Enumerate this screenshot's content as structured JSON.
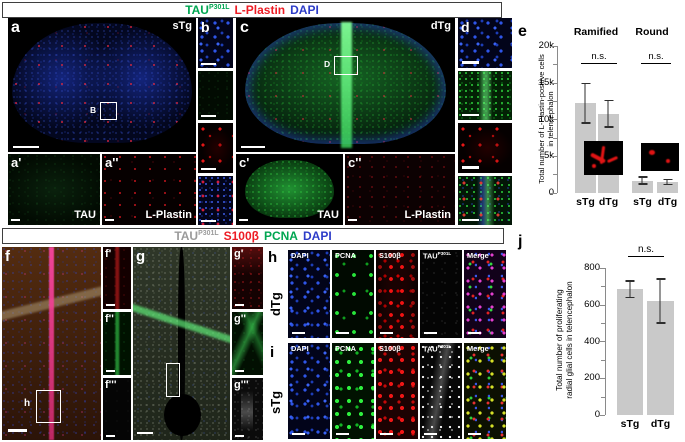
{
  "colors": {
    "tau_green": "#00a651",
    "lplastin_red": "#ed1c24",
    "dapi_blue": "#2d3cc8",
    "s100b_red": "#ed1c24",
    "pcna_green": "#00a651",
    "tau_gray": "#9b9b9b",
    "bar_fill": "#c9c9c9"
  },
  "header_top": {
    "tau": "TAU",
    "tau_sup": "P301L",
    "stain_2": "L-Plastin",
    "stain_3": "DAPI"
  },
  "header_bottom": {
    "tau": "TAU",
    "tau_sup": "P301L",
    "stain_2": "S100β",
    "stain_3": "PCNA",
    "stain_4": "DAPI"
  },
  "panels": {
    "a": {
      "label": "a",
      "genotype": "sTg",
      "inset_box_label": "B"
    },
    "a_prime": {
      "label": "a'",
      "stain": "TAU"
    },
    "a_dprime": {
      "label": "a''",
      "stain": "L-Plastin"
    },
    "b": {
      "label": "b"
    },
    "c": {
      "label": "c",
      "genotype": "dTg",
      "inset_box_label": "D"
    },
    "c_prime": {
      "label": "c'",
      "stain": "TAU"
    },
    "c_dprime": {
      "label": "c''",
      "stain": "L-Plastin"
    },
    "d": {
      "label": "d"
    },
    "e": {
      "label": "e"
    },
    "f": {
      "label": "f",
      "inset_box_label": "h"
    },
    "f_prime": {
      "label": "f'"
    },
    "f_dprime": {
      "label": "f''"
    },
    "f_tprime": {
      "label": "f'''"
    },
    "g": {
      "label": "g"
    },
    "g_prime": {
      "label": "g'"
    },
    "g_dprime": {
      "label": "g''"
    },
    "g_tprime": {
      "label": "g'''"
    },
    "h": {
      "label": "h",
      "genotype": "dTg"
    },
    "i": {
      "label": "i",
      "genotype": "sTg"
    },
    "j": {
      "label": "j"
    }
  },
  "strip_columns": {
    "c1": "DAPI",
    "c2": "PCNA",
    "c3": "S100β",
    "c4_tau": "TAU",
    "c4_sup": "P301L",
    "c5": "Merge"
  },
  "chart_data": [
    {
      "id": "e",
      "type": "bar",
      "group_labels": [
        "Ramified",
        "Round"
      ],
      "categories": [
        "sTg",
        "dTg",
        "sTg",
        "dTg"
      ],
      "values": [
        12200,
        10800,
        1700,
        1500
      ],
      "errors": [
        2800,
        1900,
        600,
        450
      ],
      "significance": [
        {
          "group": "Ramified",
          "pair": [
            "sTg",
            "dTg"
          ],
          "label": "n.s."
        },
        {
          "group": "Round",
          "pair": [
            "sTg",
            "dTg"
          ],
          "label": "n.s."
        }
      ],
      "ylabel_lines": [
        "Total number of L-Plastin-positive cells",
        "in telencephalon"
      ],
      "yticks": [
        "20k",
        "15k",
        "10k",
        "5k",
        "0"
      ],
      "ylim": [
        0,
        20000
      ],
      "grid": false,
      "legend": "none",
      "insets": [
        {
          "name": "ramified-lplastin-cell-photo"
        },
        {
          "name": "round-lplastin-cell-photo"
        }
      ]
    },
    {
      "id": "j",
      "type": "bar",
      "categories": [
        "sTg",
        "dTg"
      ],
      "values": [
        685,
        620
      ],
      "errors": [
        50,
        125
      ],
      "significance": [
        {
          "pair": [
            "sTg",
            "dTg"
          ],
          "label": "n.s."
        }
      ],
      "ylabel_lines": [
        "Total number of proliferating",
        "radial glial cells in telencephalon"
      ],
      "yticks": [
        "800",
        "600",
        "400",
        "200",
        "0"
      ],
      "ylim": [
        0,
        800
      ],
      "grid": false,
      "legend": "none"
    }
  ]
}
